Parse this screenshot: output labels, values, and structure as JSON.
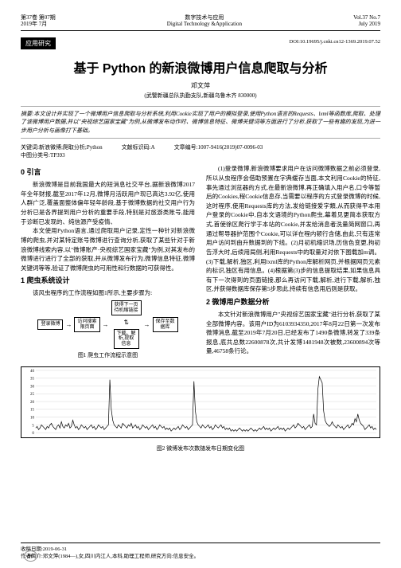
{
  "header": {
    "left": "第37卷  第07期\n2019年  7月",
    "center": "数字技术与应用\nDigital Technology &Application",
    "right": "Vol.37  No.7\nJuly  2019"
  },
  "badge": "应用研究",
  "doi": "DOI:10.19695/j.cnki.cn12-1369.2019.07.52",
  "title": "基于 Python 的新浪微博用户信息爬取与分析",
  "author": "邓文萍",
  "affil": "(武警新疆总队执勤支队,新疆乌鲁木齐  830000)",
  "abstract": "摘要:本文设计并实现了一个微博用户信息爬取与分析系统,利用Cookie实现了用户的模拟登录,使用Python语言的Requests、lxml等函数库,爬取、处理了该微博用户数据,并以\"央视综艺国家宝藏\"为例,从微博发布动作时、微博信息特征、微博关键词等方面进行了分析,获取了一些有趣的发现,为进一步用户分析与画像打下基础。",
  "keywords": "关键词:新浪微博;爬取分析;Python",
  "clc": "中图分类号:TP393",
  "doc_code": "文献标识码:A",
  "art_no": "文章编号:1007-9416(2019)07-0096-03",
  "sec0_title": "0 引言",
  "sec0_p1": "新浪微博是目前我国最大的短消息社交平台,据新浪微博2017年全年财报,截至2017年12月,微博月活跃用户现已高达3.92亿,使用人群广泛,覆盖面整体偏年轻年龄段,基于微博数据的社交用户行为分析已是各界提到用户分析的重要手段,特别是对旅游类账号,能用于诊断已发现的、纯信源产受疫情、",
  "sec0_p2": "本文使用Python语言,通过爬取用户记录,定性一种针对新浪微博的爬虫,并对某特定账号微博进行查询分析,获取了某些针对于新浪微博线索内容,以\"微博账产·央视综艺国家宝藏\"为例,对其发布的微博进行进行了全部的获取,并从微博发布行为,微博信息特征,微博关键词等等,验证了微博爬虫的可用性和行数据的可获得性。",
  "sec1_title": "1 爬虫系统设计",
  "sec1_p1": "该风虫程序的工作流程如图1所示,主要步骤为:",
  "flow": {
    "n1": "登录微博",
    "n2": "访问搜索\n限页面",
    "n3": "获得下一页\n待机缩链接",
    "n4": "下载、解\n析,提取\n信息",
    "n5": "保存至数\n据库"
  },
  "fig1": "图1 爬虫工作流程示意图",
  "right_p1": "(1)登录微博,新浪微博要求用户在访问微博数据之前必须登录,所以从虫程序会借助预置在字典缓存当面,本文利用Cookie的特征,事先通过浏览器的方式,在最新浪微博,再正确填入用户名,口令等暂后的Cookies,程Cookie信息存,当需要以程序的方式登录微博的时候,这时程序,使用Requests库的方法,发给链接爱字類,从而获得平本用户登录的Cookie中,自本文语境的Python爬虫,幕着见更简本获取方式,首使徐区爬行学于本站的Cookie,并发给消息者洗量简网窗口,再通过帮导器护范围个Cookie,可以详在程内顿行含储,由此,只有连常用户访问到由升数据到的下线。(2)月初机缩识场,历信色变更,拘初告浮大时,后续用局侧,利用Requests中的取量对对依下图载加m调。(3)下载,解析,独区,利用lxml库的Python库解析网页,并根据网页元素的标识,独区有用信息。(4)根据第(3)步的信息提取结果,如果信息具有下一次得到的页面链接,那么再访问下载,解析,进行下载,解析,独区,并获得数据库保存第5步思此,持续有信息用后则是获取。",
  "sec2_title": "2 微博用户数据分析",
  "sec2_p1": "本文针对新浪微博用户\"央视综艺国家宝藏\"进行分析,获取了某全部微博内容。该用户ID为6103934350,2017年8月22日第一次发布微博消息,截至2019年7月20日,已经发布了1490条微博,转发了339条报息,底共总数22600878次,共计发博1481948次被数,23600894次等量,46758条行论。",
  "fig2": "图2 微博发布次数随发布日期变化图",
  "chart": {
    "type": "line",
    "ylim": [
      0,
      40
    ],
    "yticks": [
      0,
      5,
      10,
      15,
      20,
      25,
      30,
      35,
      40
    ],
    "grid_color": "#cccccc",
    "line_color": "#000000",
    "background": "#ffffff",
    "n_points": 240,
    "values": [
      3,
      4,
      2,
      3,
      5,
      4,
      3,
      2,
      4,
      3,
      5,
      6,
      4,
      3,
      2,
      4,
      5,
      3,
      7,
      4,
      3,
      5,
      4,
      6,
      3,
      4,
      8,
      5,
      3,
      4,
      2,
      3,
      5,
      4,
      3,
      4,
      2,
      3,
      4,
      5,
      3,
      4,
      2,
      3,
      5,
      4,
      3,
      4,
      2,
      3,
      4,
      5,
      34,
      15,
      8,
      5,
      4,
      3,
      5,
      4,
      3,
      6,
      5,
      4,
      3,
      5,
      4,
      6,
      3,
      4,
      5,
      3,
      4,
      2,
      3,
      5,
      4,
      3,
      4,
      2,
      3,
      4,
      5,
      3,
      4,
      2,
      3,
      5,
      4,
      3,
      4,
      2,
      3,
      2,
      3,
      1,
      2,
      3,
      2,
      3,
      4,
      2,
      3,
      5,
      4,
      3,
      4,
      2,
      3,
      4,
      5,
      33,
      14,
      7,
      5,
      4,
      3,
      5,
      4,
      3,
      4,
      5,
      3,
      4,
      2,
      3,
      5,
      4,
      3,
      4,
      5,
      3,
      4,
      2,
      3,
      2,
      3,
      1,
      2,
      1,
      2,
      1,
      2,
      3,
      2,
      1,
      2,
      1,
      2,
      1,
      2,
      3,
      2,
      1,
      2,
      1,
      2,
      3,
      2,
      3,
      4,
      2,
      3,
      2,
      3,
      1,
      2,
      3,
      2,
      3,
      4,
      2,
      3,
      2,
      3,
      1,
      2,
      3,
      2,
      3,
      4,
      5,
      3,
      4,
      6,
      5,
      4,
      3,
      4,
      2,
      3,
      4,
      5,
      3,
      4,
      12,
      6,
      5,
      28,
      36,
      34,
      32,
      14,
      8,
      6,
      5,
      4,
      5,
      7,
      5,
      4,
      3,
      5,
      4,
      3,
      4,
      2,
      3,
      4,
      5,
      3,
      4,
      6,
      5,
      9,
      7,
      12,
      8,
      6,
      5,
      4,
      2,
      3,
      4,
      5,
      3,
      4,
      2,
      3,
      2
    ]
  },
  "footer": {
    "l1": "收稿日期:2019-06-31",
    "l2": "作者简介:邓文萍(1984—),女,四川内江人,本科,助理工程师,研究方向:信息安全。"
  },
  "pagenum": "96"
}
